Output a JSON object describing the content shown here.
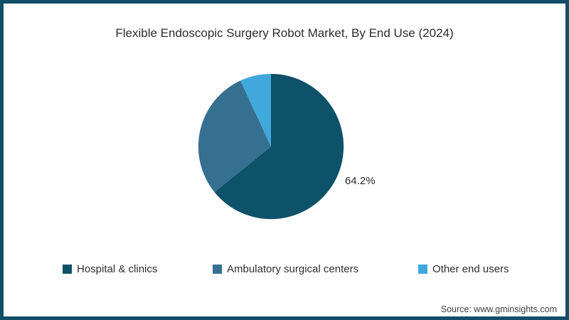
{
  "title": "Flexible Endoscopic Surgery Robot Market, By End Use (2024)",
  "source": "Source: www.gminsights.com",
  "colors": {
    "frame_border": "#144f68",
    "background": "#ffffff",
    "title_text": "#2d2d2d",
    "slice_hospital": "#0d5268",
    "slice_ambulatory": "#367090",
    "slice_other": "#41a8dd"
  },
  "chart_data": {
    "type": "pie",
    "title": "Flexible Endoscopic Surgery Robot Market, By End Use (2024)",
    "start_angle_deg": 0,
    "direction": "clockwise",
    "legend_position": "bottom",
    "slices": [
      {
        "label": "Hospital & clinics",
        "value": 64.2,
        "display_label": "64.2%",
        "color": "#0d5268"
      },
      {
        "label": "Ambulatory surgical centers",
        "value": 28.9,
        "display_label": "",
        "color": "#367090"
      },
      {
        "label": "Other end users",
        "value": 6.9,
        "display_label": "",
        "color": "#41a8dd"
      }
    ],
    "notes": "Only the 64.2% slice is labeled in the figure; other slice values estimated from arc geometry."
  }
}
